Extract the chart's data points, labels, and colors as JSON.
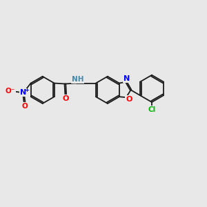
{
  "background_color": "#e8e8e8",
  "bond_color": "#1a1a1a",
  "atom_colors": {
    "N": "#0000ff",
    "O": "#ff0000",
    "Cl": "#00bb00",
    "NH": "#4488aa",
    "C": "#1a1a1a"
  },
  "figsize": [
    3.0,
    3.0
  ],
  "dpi": 100
}
